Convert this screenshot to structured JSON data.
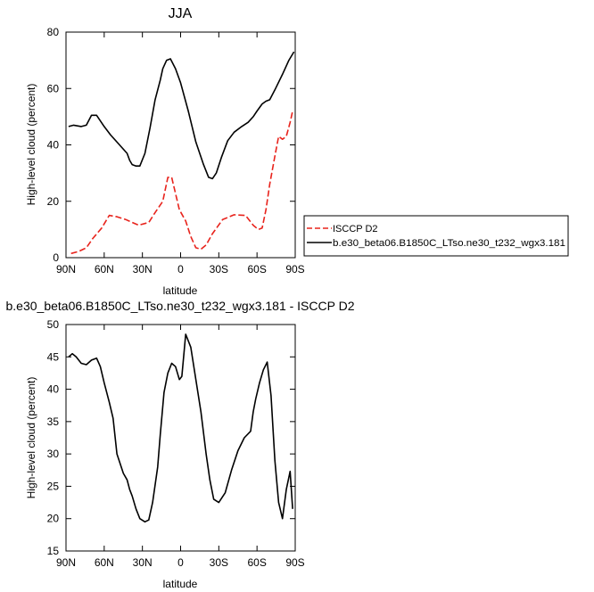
{
  "chart_data": [
    {
      "type": "line",
      "title": "JJA",
      "xlabel": "latitude",
      "ylabel": "High-level cloud (percent)",
      "xlim": [
        90,
        -90
      ],
      "ylim": [
        0,
        80
      ],
      "x_ticks": [
        90,
        60,
        30,
        0,
        -30,
        -60,
        -90
      ],
      "x_tick_labels": [
        "90N",
        "60N",
        "30N",
        "0",
        "30S",
        "60S",
        "90S"
      ],
      "y_ticks": [
        0,
        20,
        40,
        60,
        80
      ],
      "y_tick_labels": [
        "0",
        "20",
        "40",
        "60",
        "80"
      ],
      "legend_position": "right",
      "series": [
        {
          "name": "ISCCP D2",
          "color": "#e8231c",
          "dash": "dashed",
          "x": [
            86,
            80,
            74,
            69,
            62,
            56,
            50,
            43,
            33,
            25,
            20,
            14,
            10,
            7,
            1,
            -4,
            -8,
            -12,
            -16,
            -20,
            -25,
            -33,
            -42,
            -51,
            -57,
            -61,
            -64,
            -67,
            -70,
            -74,
            -77,
            -80,
            -83,
            -86,
            -88
          ],
          "y": [
            1.5,
            2.2,
            3.5,
            6.8,
            10.5,
            15,
            14.5,
            13.5,
            11.5,
            12.5,
            16,
            20,
            28.5,
            28.5,
            17,
            13,
            7.5,
            3.5,
            3,
            4.5,
            8.5,
            13.5,
            15.2,
            15,
            11.5,
            10,
            10.5,
            17,
            26,
            36,
            43,
            42,
            43,
            48,
            52
          ]
        },
        {
          "name": "b.e30_beta06.B1850C_LTso.ne30_t232_wgx3.181",
          "color": "#000000",
          "dash": "solid",
          "x": [
            88,
            84,
            78,
            74,
            70,
            66,
            60,
            55,
            48,
            42,
            40,
            38,
            35,
            32,
            28,
            24,
            20,
            16,
            14,
            11,
            8,
            4,
            0,
            -6,
            -12,
            -18,
            -22,
            -25,
            -28,
            -32,
            -37,
            -42,
            -48,
            -53,
            -57,
            -60,
            -64,
            -67,
            -70,
            -74,
            -80,
            -85,
            -89
          ],
          "y": [
            46.5,
            47,
            46.5,
            47,
            50.5,
            50.5,
            46.5,
            43.5,
            40,
            37,
            34.5,
            33,
            32.5,
            32.5,
            37,
            46,
            56,
            63,
            67,
            70,
            70.5,
            67,
            62,
            52,
            41,
            33,
            28.5,
            28,
            30,
            35.5,
            41.5,
            44.5,
            46.5,
            48,
            50,
            52,
            54.5,
            55.5,
            56,
            59.5,
            65,
            70,
            73
          ]
        }
      ]
    },
    {
      "type": "line",
      "title": "b.e30_beta06.B1850C_LTso.ne30_t232_wgx3.181 - ISCCP D2",
      "xlabel": "latitude",
      "ylabel": "High-level cloud (percent)",
      "xlim": [
        90,
        -90
      ],
      "ylim": [
        15,
        50
      ],
      "x_ticks": [
        90,
        60,
        30,
        0,
        -30,
        -60,
        -90
      ],
      "x_tick_labels": [
        "90N",
        "60N",
        "30N",
        "0",
        "30S",
        "60S",
        "90S"
      ],
      "y_ticks": [
        15,
        20,
        25,
        30,
        35,
        40,
        45,
        50
      ],
      "y_tick_labels": [
        "15",
        "20",
        "25",
        "30",
        "35",
        "40",
        "45",
        "50"
      ],
      "series": [
        {
          "color": "#000000",
          "dash": "solid",
          "x": [
            88,
            85,
            82,
            78,
            74,
            70,
            66,
            63,
            60,
            56,
            53,
            50,
            45,
            42,
            40,
            38,
            35,
            32,
            28,
            25,
            22,
            18,
            16,
            13,
            10,
            7,
            4,
            1,
            -1,
            -4,
            -8,
            -12,
            -16,
            -20,
            -23,
            -26,
            -30,
            -35,
            -40,
            -45,
            -50,
            -55,
            -57,
            -59,
            -62,
            -65,
            -68,
            -71,
            -74,
            -77,
            -80,
            -83,
            -86,
            -88
          ],
          "y": [
            45,
            45.5,
            45,
            44,
            43.8,
            44.5,
            44.8,
            43.5,
            41,
            38,
            35.5,
            30,
            27,
            26,
            24.5,
            23.5,
            21.5,
            20,
            19.5,
            19.8,
            22.5,
            28,
            33,
            39.5,
            42.5,
            44,
            43.5,
            41.5,
            42,
            48.5,
            46.5,
            41.5,
            36.5,
            30,
            26,
            23,
            22.5,
            24,
            27.5,
            30.5,
            32.5,
            33.5,
            36.5,
            38.5,
            41,
            43,
            44.2,
            39,
            29,
            22.5,
            20,
            24.5,
            27.3,
            21.5
          ]
        }
      ]
    }
  ]
}
